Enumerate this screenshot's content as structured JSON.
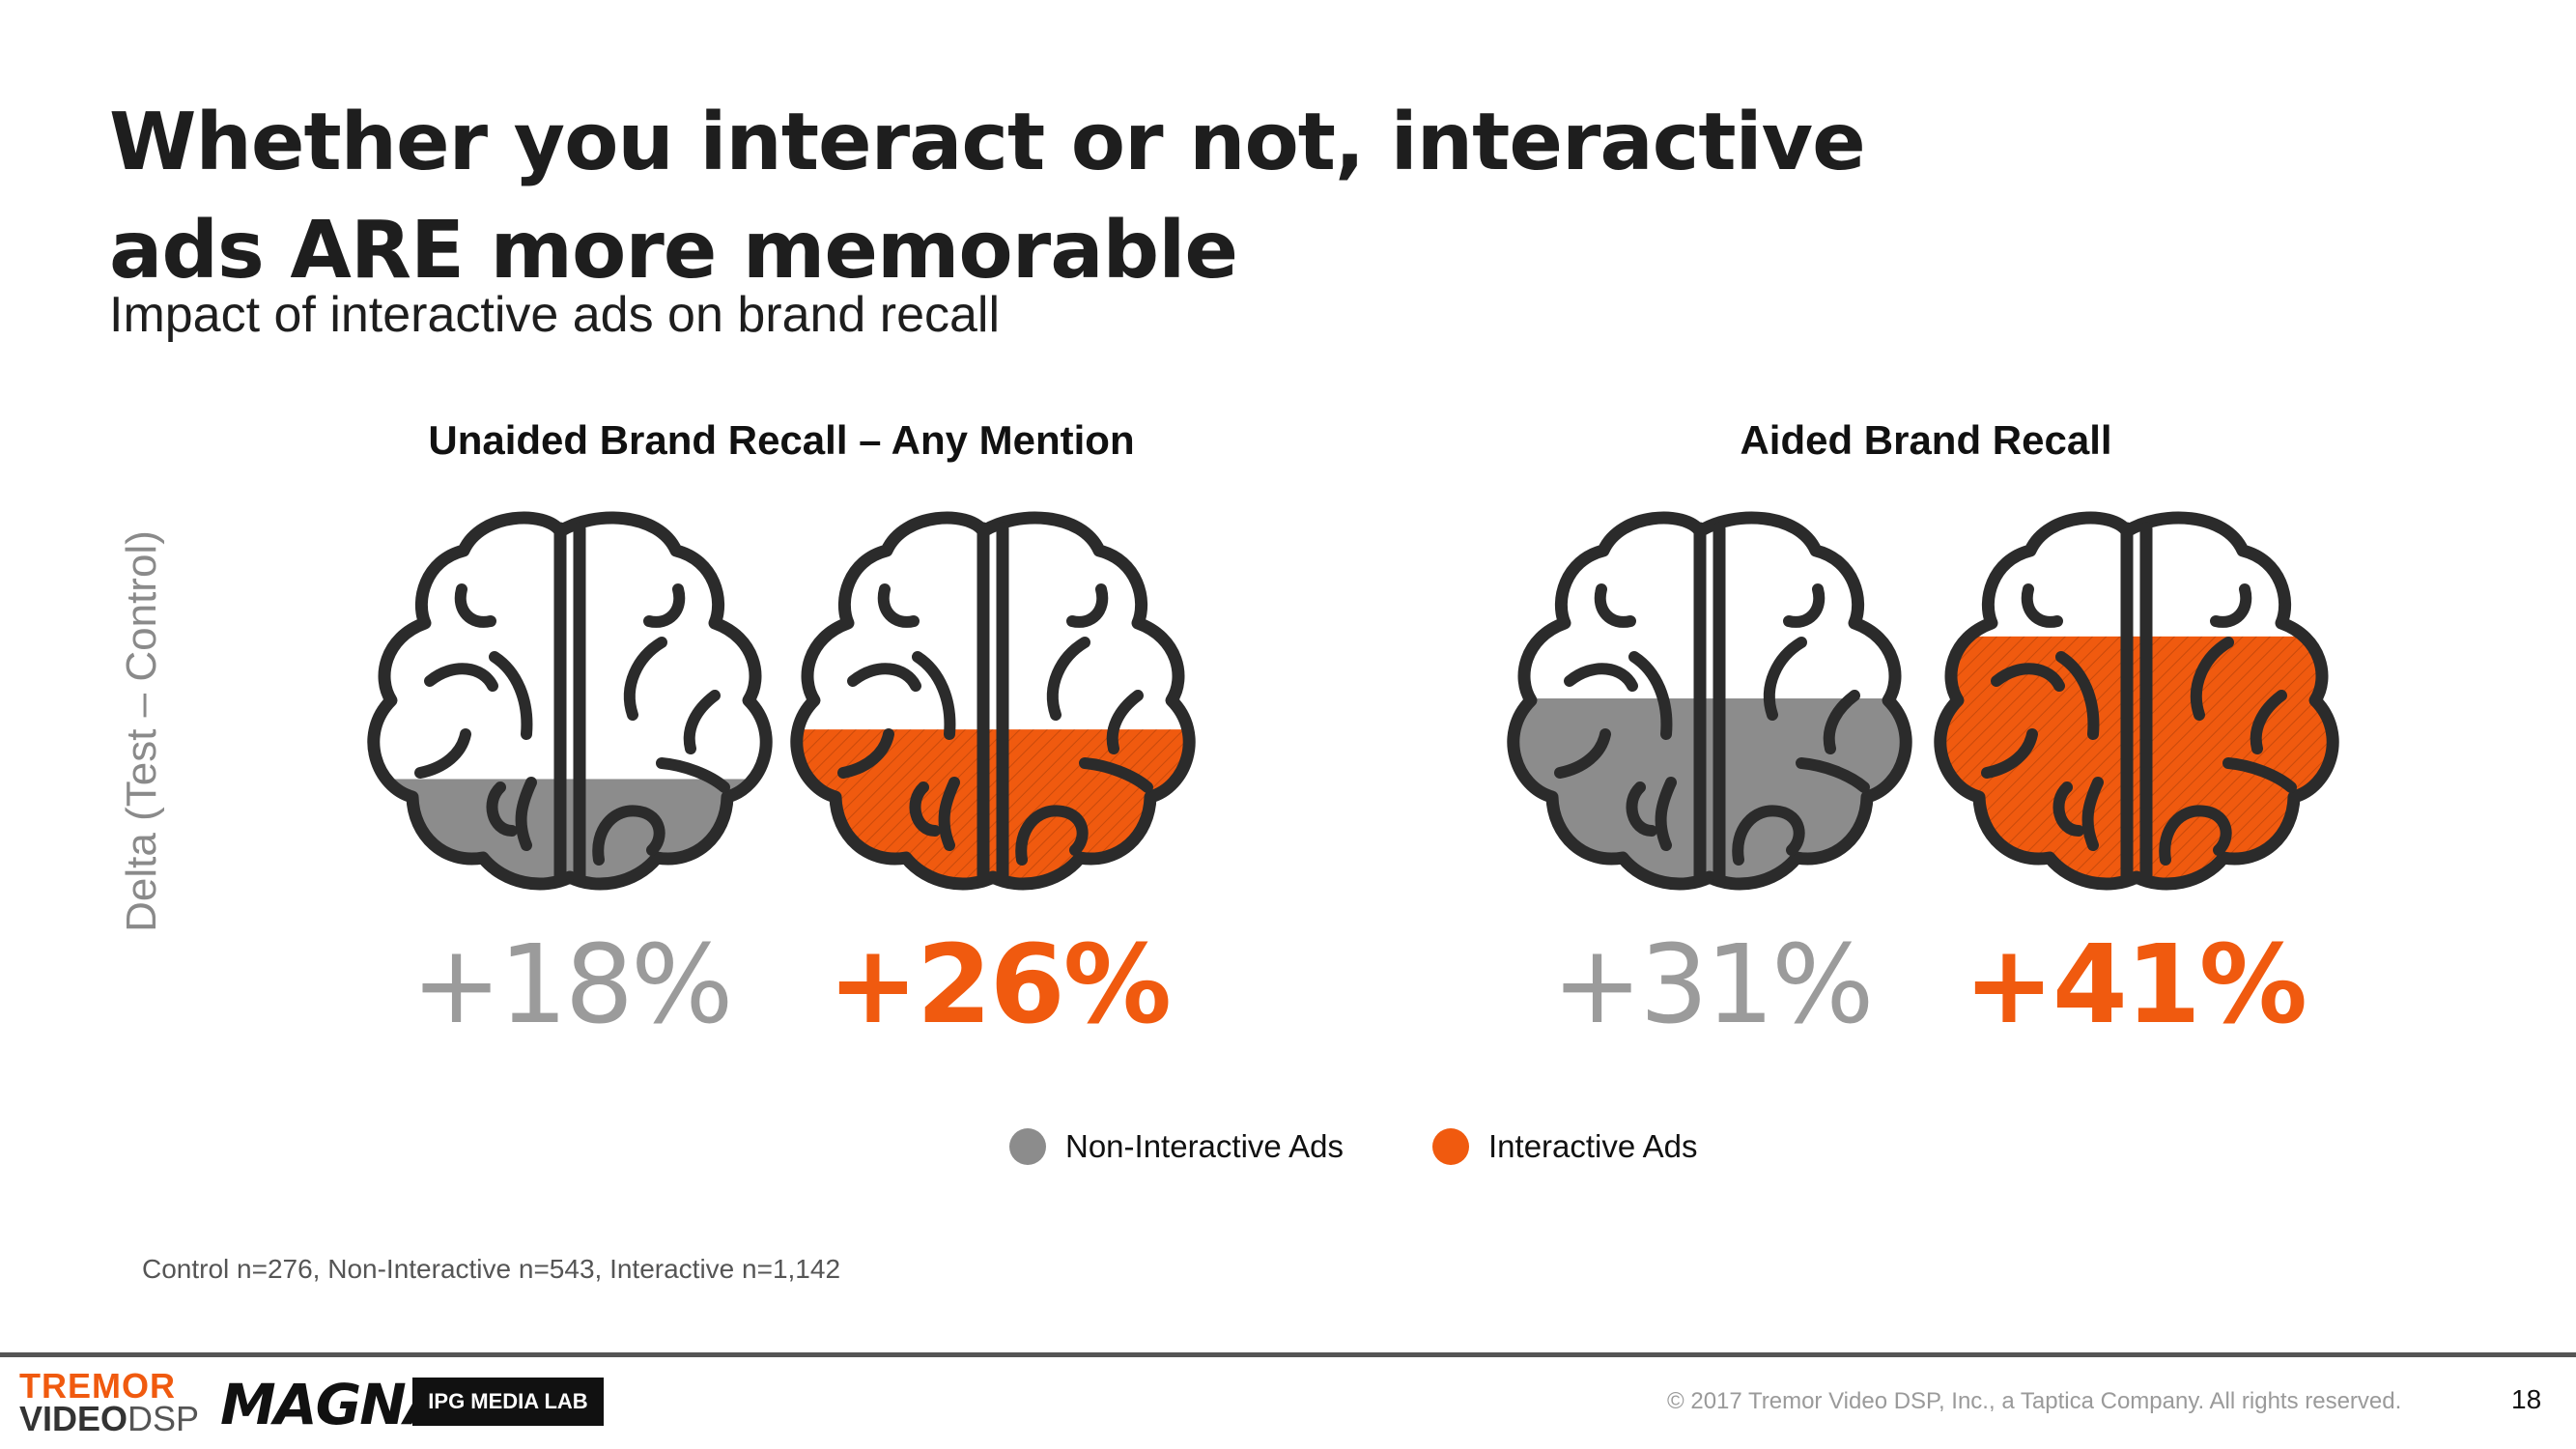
{
  "slide": {
    "title": "Whether you interact or not, interactive ads ARE more memorable",
    "subtitle": "Impact of interactive ads on brand recall",
    "footnote": "Control n=276, Non-Interactive n=543, Interactive n=1,142",
    "copyright": "© 2017 Tremor Video DSP, Inc., a Taptica Company. All rights reserved.",
    "page_number": "18",
    "logos": {
      "tremor_line1": "TREMOR",
      "tremor_line2_a": "VIDEO",
      "tremor_line2_b": "DSP",
      "magna": "MAGNA",
      "ipg": "IPG MEDIA LAB"
    }
  },
  "chart_data": {
    "type": "bar",
    "ylabel": "Delta (Test – Control)",
    "unit": "%",
    "groups": [
      {
        "title": "Unaided Brand Recall – Any Mention",
        "values": [
          {
            "series": "Non-Interactive Ads",
            "value": 18,
            "label": "+18%"
          },
          {
            "series": "Interactive Ads",
            "value": 26,
            "label": "+26%"
          }
        ]
      },
      {
        "title": "Aided Brand Recall",
        "values": [
          {
            "series": "Non-Interactive Ads",
            "value": 31,
            "label": "+31%"
          },
          {
            "series": "Interactive Ads",
            "value": 41,
            "label": "+41%"
          }
        ]
      }
    ],
    "legend": [
      {
        "name": "Non-Interactive Ads",
        "color": "#8c8c8c"
      },
      {
        "name": "Interactive Ads",
        "color": "#f05a0f"
      }
    ],
    "legend_position": "bottom",
    "colors": {
      "grey": "#8c8c8c",
      "orange": "#f05a0f",
      "outline": "#2b2b2b"
    }
  }
}
